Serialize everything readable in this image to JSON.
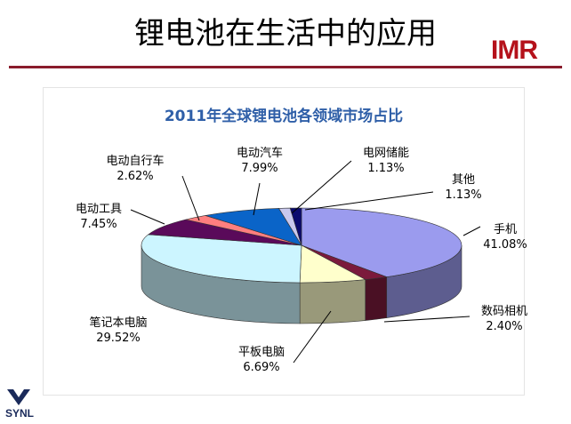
{
  "slide": {
    "title": "锂电池在生活中的应用",
    "logo": "IMR",
    "footer_logo": "SYNL"
  },
  "chart_data": {
    "type": "pie",
    "title": "2011年全球锂电池各领域市场占比",
    "slices": [
      {
        "label": "手机",
        "value": 41.08,
        "display": "41.08%",
        "color": "#9b9bee"
      },
      {
        "label": "数码相机",
        "value": 2.4,
        "display": "2.40%",
        "color": "#7b1a3c"
      },
      {
        "label": "平板电脑",
        "value": 6.69,
        "display": "6.69%",
        "color": "#ffffcc"
      },
      {
        "label": "笔记本电脑",
        "value": 29.52,
        "display": "29.52%",
        "color": "#ccf5ff"
      },
      {
        "label": "电动工具",
        "value": 7.45,
        "display": "7.45%",
        "color": "#5a0a5a"
      },
      {
        "label": "电动自行车",
        "value": 2.62,
        "display": "2.62%",
        "color": "#ff7f7f"
      },
      {
        "label": "电动汽车",
        "value": 7.99,
        "display": "7.99%",
        "color": "#0a64c8"
      },
      {
        "label": "电网储能",
        "value": 1.13,
        "display": "1.13%",
        "color": "#c8c8ee"
      },
      {
        "label": "其他",
        "value": 1.13,
        "display": "1.13%",
        "color": "#0a0a6e"
      }
    ]
  }
}
